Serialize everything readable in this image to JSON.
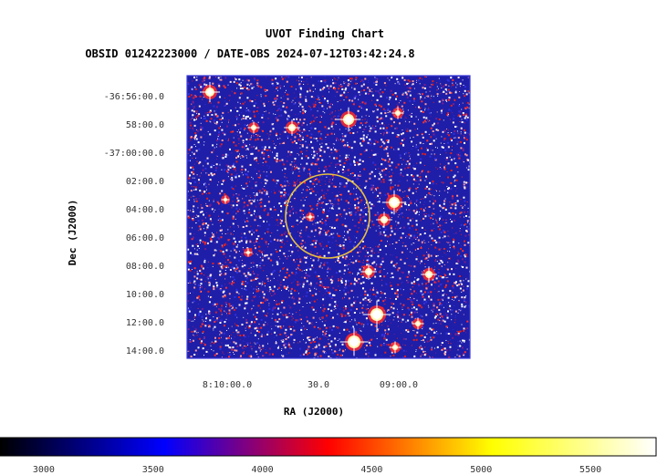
{
  "chart_data": {
    "type": "heatmap",
    "title": "UVOT Finding Chart",
    "subtitle": "OBSID 01242223000 / DATE-OBS 2024-07-12T03:42:24.8",
    "xlabel": "RA (J2000)",
    "ylabel": "Dec (J2000)",
    "x_ticks": [
      "8:10:00.0",
      "30.0",
      "09:00.0"
    ],
    "y_ticks": [
      "-36:56:00.0",
      "58:00.0",
      "-37:00:00.0",
      "02:00.0",
      "04:00.0",
      "06:00.0",
      "08:00.0",
      "10:00.0",
      "12:00.0",
      "14:00.0"
    ],
    "colorbar": {
      "ticks": [
        3000,
        3500,
        4000,
        4500,
        5000,
        5500
      ],
      "range": [
        2800,
        5800
      ],
      "colors": [
        "#000000",
        "#0000ff",
        "#ff0000",
        "#ffff00",
        "#ffffff"
      ]
    },
    "source_region": {
      "shape": "circle",
      "color": "#e8c040"
    },
    "image_colors": {
      "background": "#1e1ea8",
      "frame": "#3a3ad8"
    }
  }
}
